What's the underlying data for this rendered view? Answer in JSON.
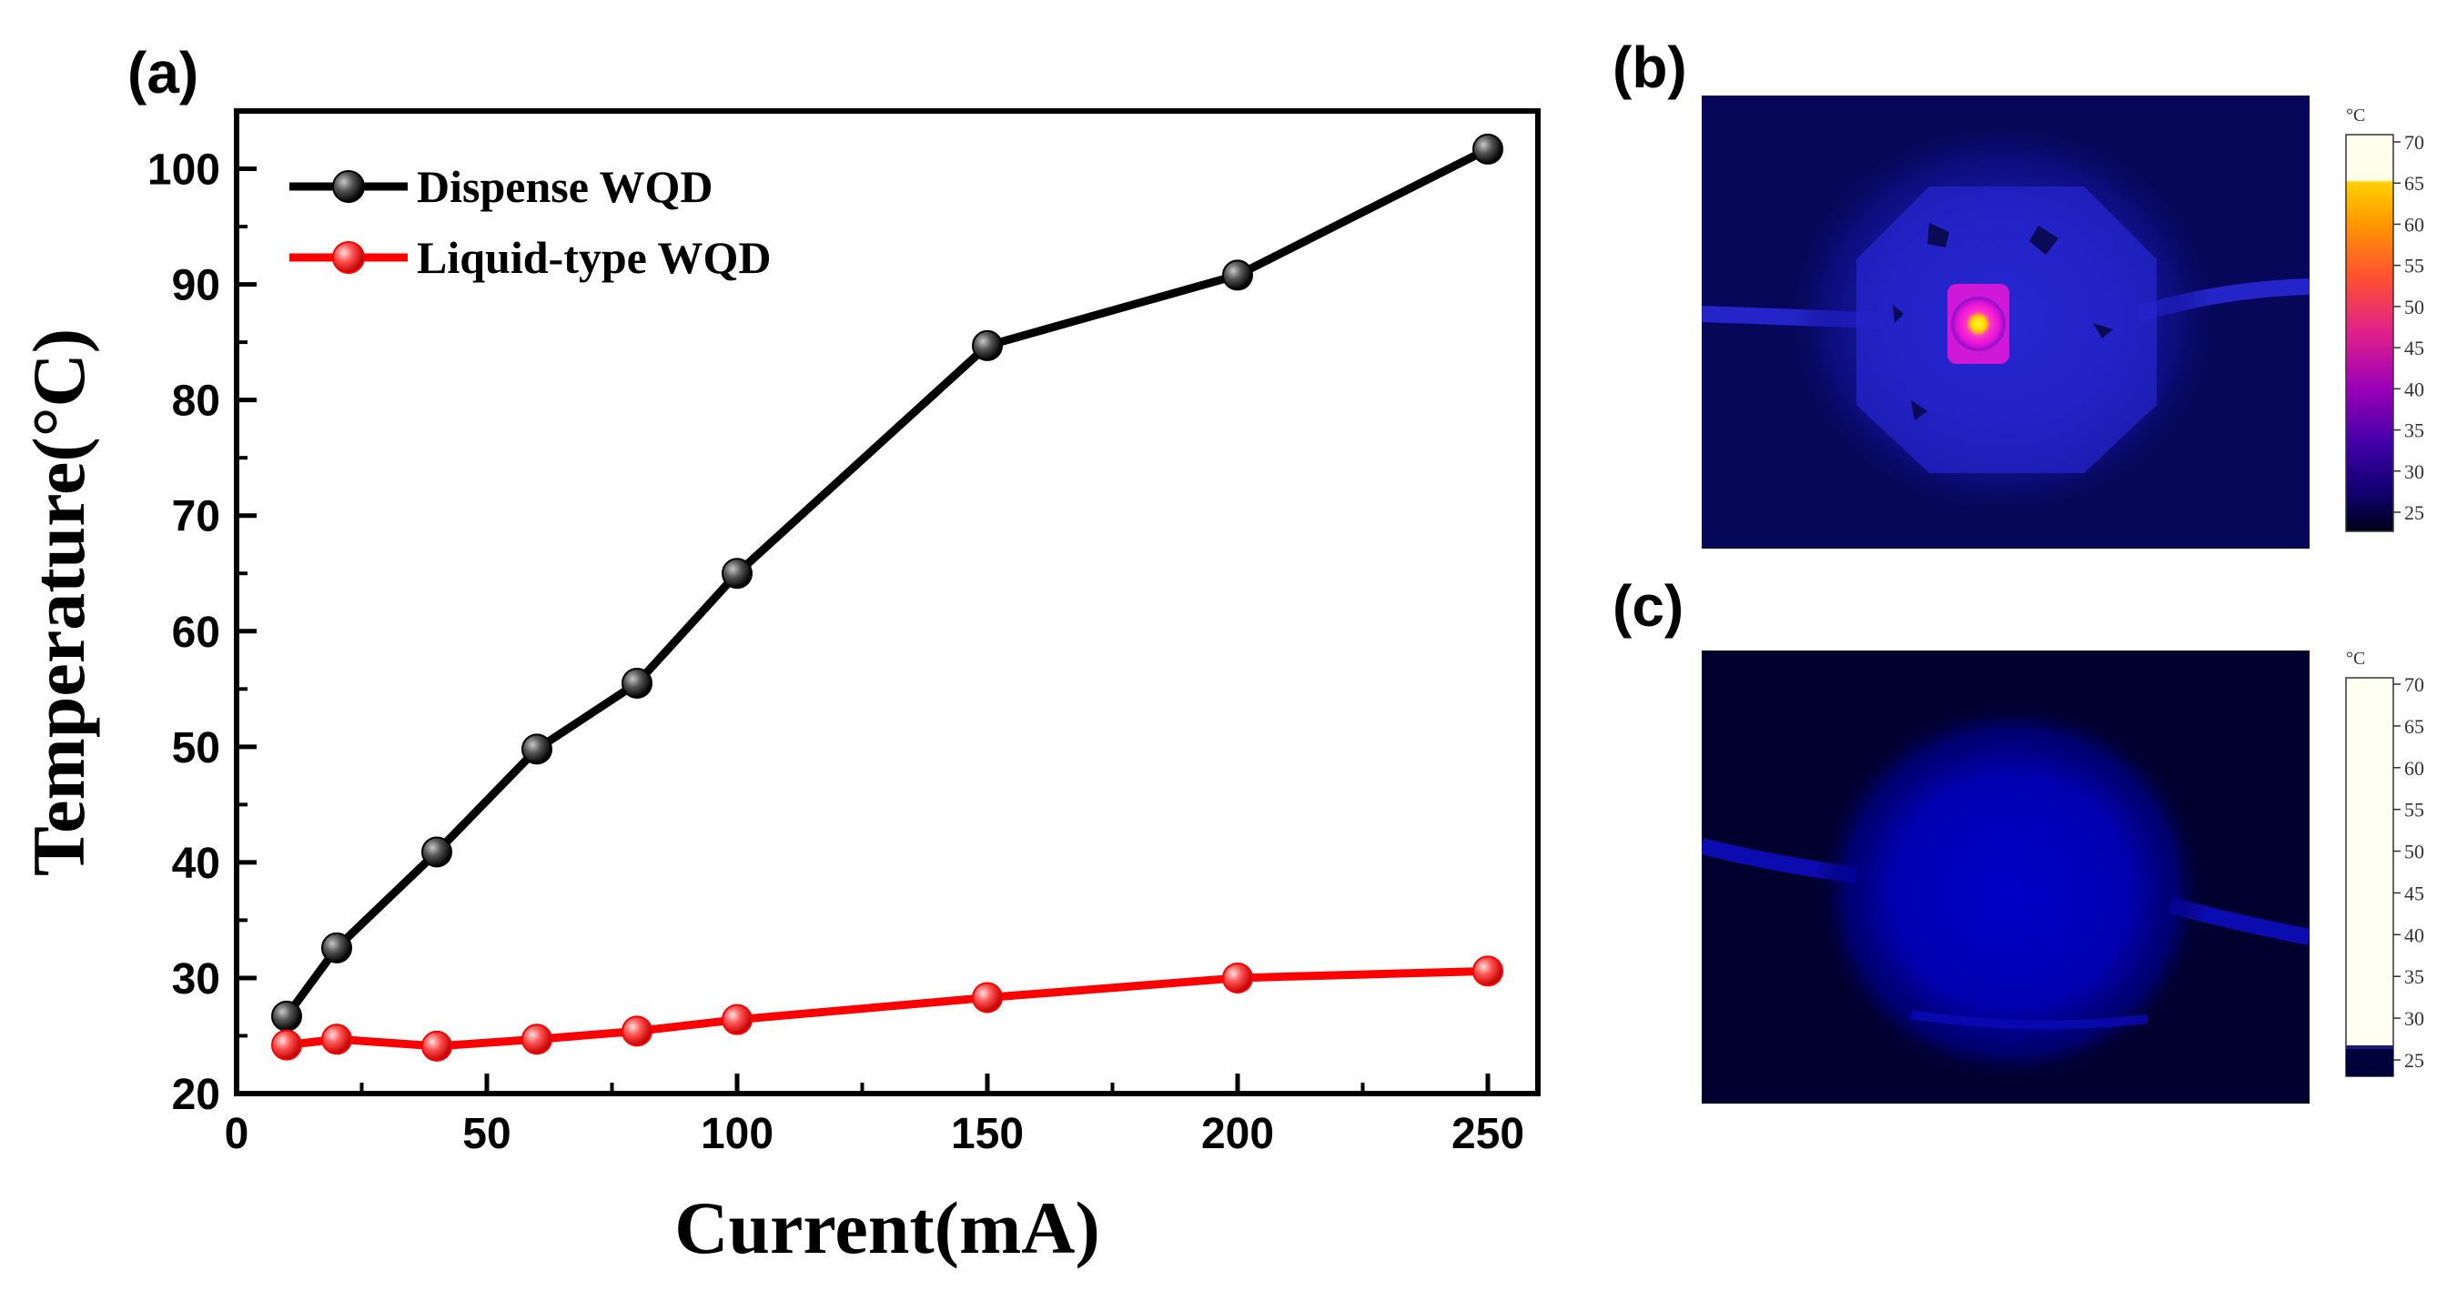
{
  "panels": {
    "a": "(a)",
    "b": "(b)",
    "c": "(c)"
  },
  "chart_data": {
    "type": "line",
    "title": "",
    "xlabel": "Current(mA)",
    "ylabel": "Temperature(°C)",
    "xlim": [
      0,
      260
    ],
    "ylim": [
      20,
      105
    ],
    "xticks": [
      0,
      50,
      100,
      150,
      200,
      250
    ],
    "yticks": [
      20,
      30,
      40,
      50,
      60,
      70,
      80,
      90,
      100
    ],
    "legend_position": "top-left",
    "series": [
      {
        "name": "Dispense WQD",
        "color": "#000000",
        "x": [
          10,
          20,
          40,
          60,
          80,
          100,
          150,
          200,
          250
        ],
        "y": [
          26.7,
          32.6,
          40.9,
          49.8,
          55.5,
          65.0,
          84.7,
          90.8,
          101.7
        ]
      },
      {
        "name": "Liquid-type WQD",
        "color": "#ff0000",
        "x": [
          10,
          20,
          40,
          60,
          80,
          100,
          150,
          200,
          250
        ],
        "y": [
          24.2,
          24.7,
          24.1,
          24.7,
          25.4,
          26.4,
          28.3,
          30.0,
          30.6
        ]
      }
    ]
  },
  "thermal_images": {
    "b": {
      "colorbar_unit": "°C",
      "colorbar_ticks": [
        "70",
        "65",
        "60",
        "55",
        "50",
        "45",
        "40",
        "35",
        "30",
        "25"
      ]
    },
    "c": {
      "colorbar_unit": "°C",
      "colorbar_ticks": [
        "70",
        "65",
        "60",
        "55",
        "50",
        "45",
        "40",
        "35",
        "30",
        "25"
      ]
    }
  }
}
